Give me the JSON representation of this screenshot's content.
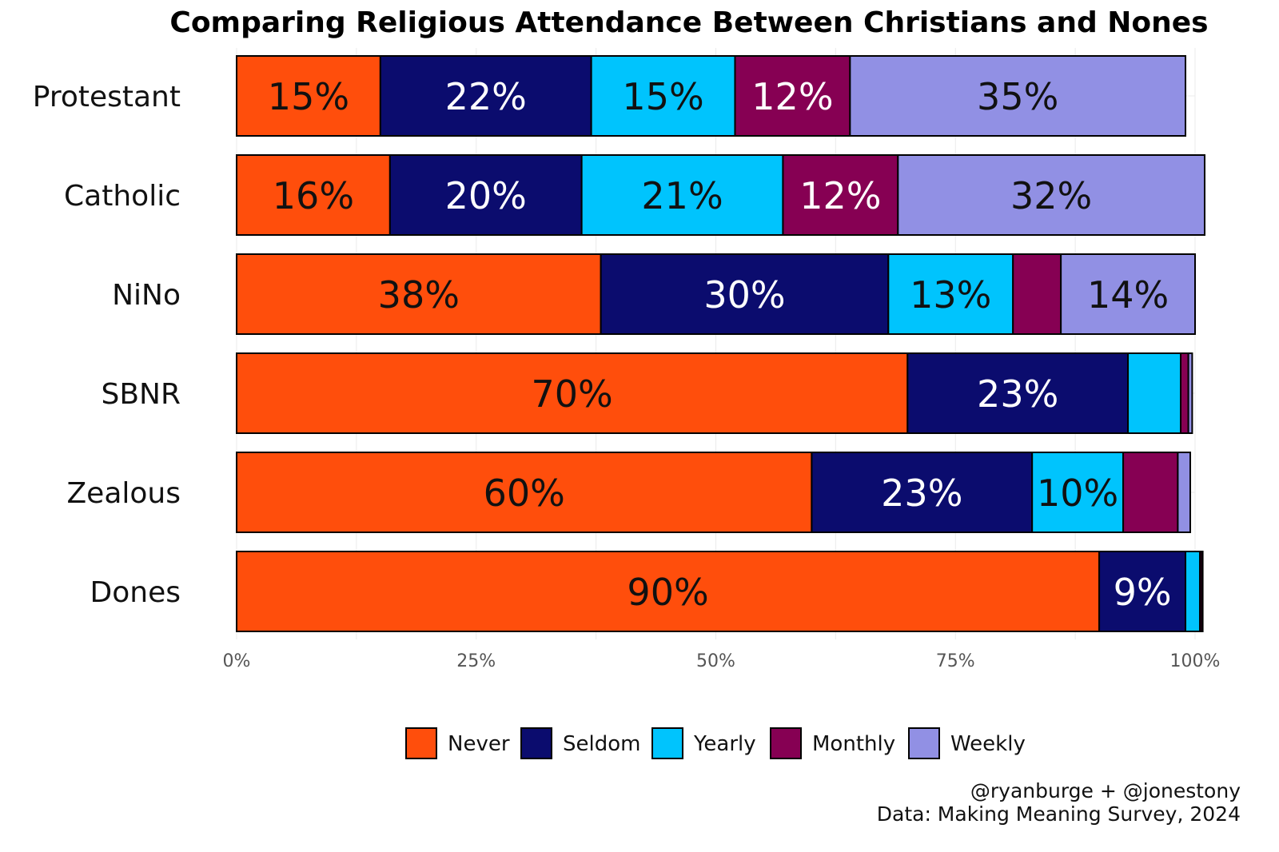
{
  "chart_data": {
    "type": "bar",
    "orientation": "horizontal",
    "stacked": true,
    "title": "Comparing Religious Attendance Between Christians and Nones",
    "categories": [
      "Protestant",
      "Catholic",
      "NiNo",
      "SBNR",
      "Zealous",
      "Dones"
    ],
    "series": [
      {
        "name": "Never",
        "color": "#ff4e0c",
        "label_color": "#111111",
        "values": [
          15,
          16,
          38,
          70,
          60,
          90
        ]
      },
      {
        "name": "Seldom",
        "color": "#0b0c6e",
        "label_color": "#ffffff",
        "values": [
          22,
          20,
          30,
          23,
          23,
          9
        ]
      },
      {
        "name": "Yearly",
        "color": "#00c4fd",
        "label_color": "#111111",
        "values": [
          15,
          21,
          13,
          5.5,
          9.5,
          1.5
        ]
      },
      {
        "name": "Monthly",
        "color": "#860053",
        "label_color": "#ffffff",
        "values": [
          12,
          12,
          5,
          0.8,
          5.7,
          0.2
        ]
      },
      {
        "name": "Weekly",
        "color": "#9190e4",
        "label_color": "#111111",
        "values": [
          35,
          32,
          14,
          0.4,
          1.3,
          0.1
        ]
      }
    ],
    "data_labels": [
      [
        "15%",
        "16%",
        "38%",
        "70%",
        "60%",
        "90%"
      ],
      [
        "22%",
        "20%",
        "30%",
        "23%",
        "23%",
        "9%"
      ],
      [
        "15%",
        "21%",
        "13%",
        "",
        "10%",
        ""
      ],
      [
        "12%",
        "12%",
        "",
        "",
        "",
        ""
      ],
      [
        "35%",
        "32%",
        "14%",
        "",
        "",
        ""
      ]
    ],
    "xlim": [
      0,
      100
    ],
    "xticks": [
      0,
      25,
      50,
      75,
      100
    ],
    "xtick_labels": [
      "0%",
      "25%",
      "50%",
      "75%",
      "100%"
    ],
    "xlabel": "",
    "ylabel": "",
    "grid": true,
    "legend_position": "bottom"
  },
  "caption": {
    "line1": "@ryanburge + @jonestony",
    "line2": "Data: Making Meaning Survey, 2024"
  }
}
